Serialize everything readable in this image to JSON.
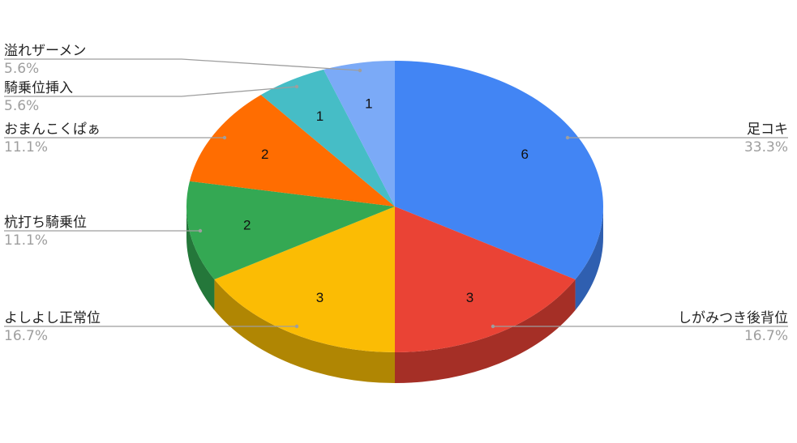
{
  "chart_data": {
    "type": "pie",
    "style": "3d",
    "legend": "labeled leader lines",
    "slices": [
      {
        "label": "足コキ",
        "value": 6,
        "percent": "33.3%",
        "color": "#4285f4",
        "side_color": "#2f5fb0"
      },
      {
        "label": "しがみつき後背位",
        "value": 3,
        "percent": "16.7%",
        "color": "#ea4335",
        "side_color": "#a52f26"
      },
      {
        "label": "よしよし正常位",
        "value": 3,
        "percent": "16.7%",
        "color": "#fbbc04",
        "side_color": "#b08603"
      },
      {
        "label": "杭打ち騎乗位",
        "value": 2,
        "percent": "11.1%",
        "color": "#34a853",
        "side_color": "#24773a"
      },
      {
        "label": "おまんこくぱぁ",
        "value": 2,
        "percent": "11.1%",
        "color": "#ff6d01",
        "side_color": "#b34d01"
      },
      {
        "label": "騎乗位挿入",
        "value": 1,
        "percent": "5.6%",
        "color": "#46bdc6",
        "side_color": "#31858b"
      },
      {
        "label": "溢れザーメン",
        "value": 1,
        "percent": "5.6%",
        "color": "#7baaf7",
        "side_color": "#5677ad"
      }
    ]
  }
}
